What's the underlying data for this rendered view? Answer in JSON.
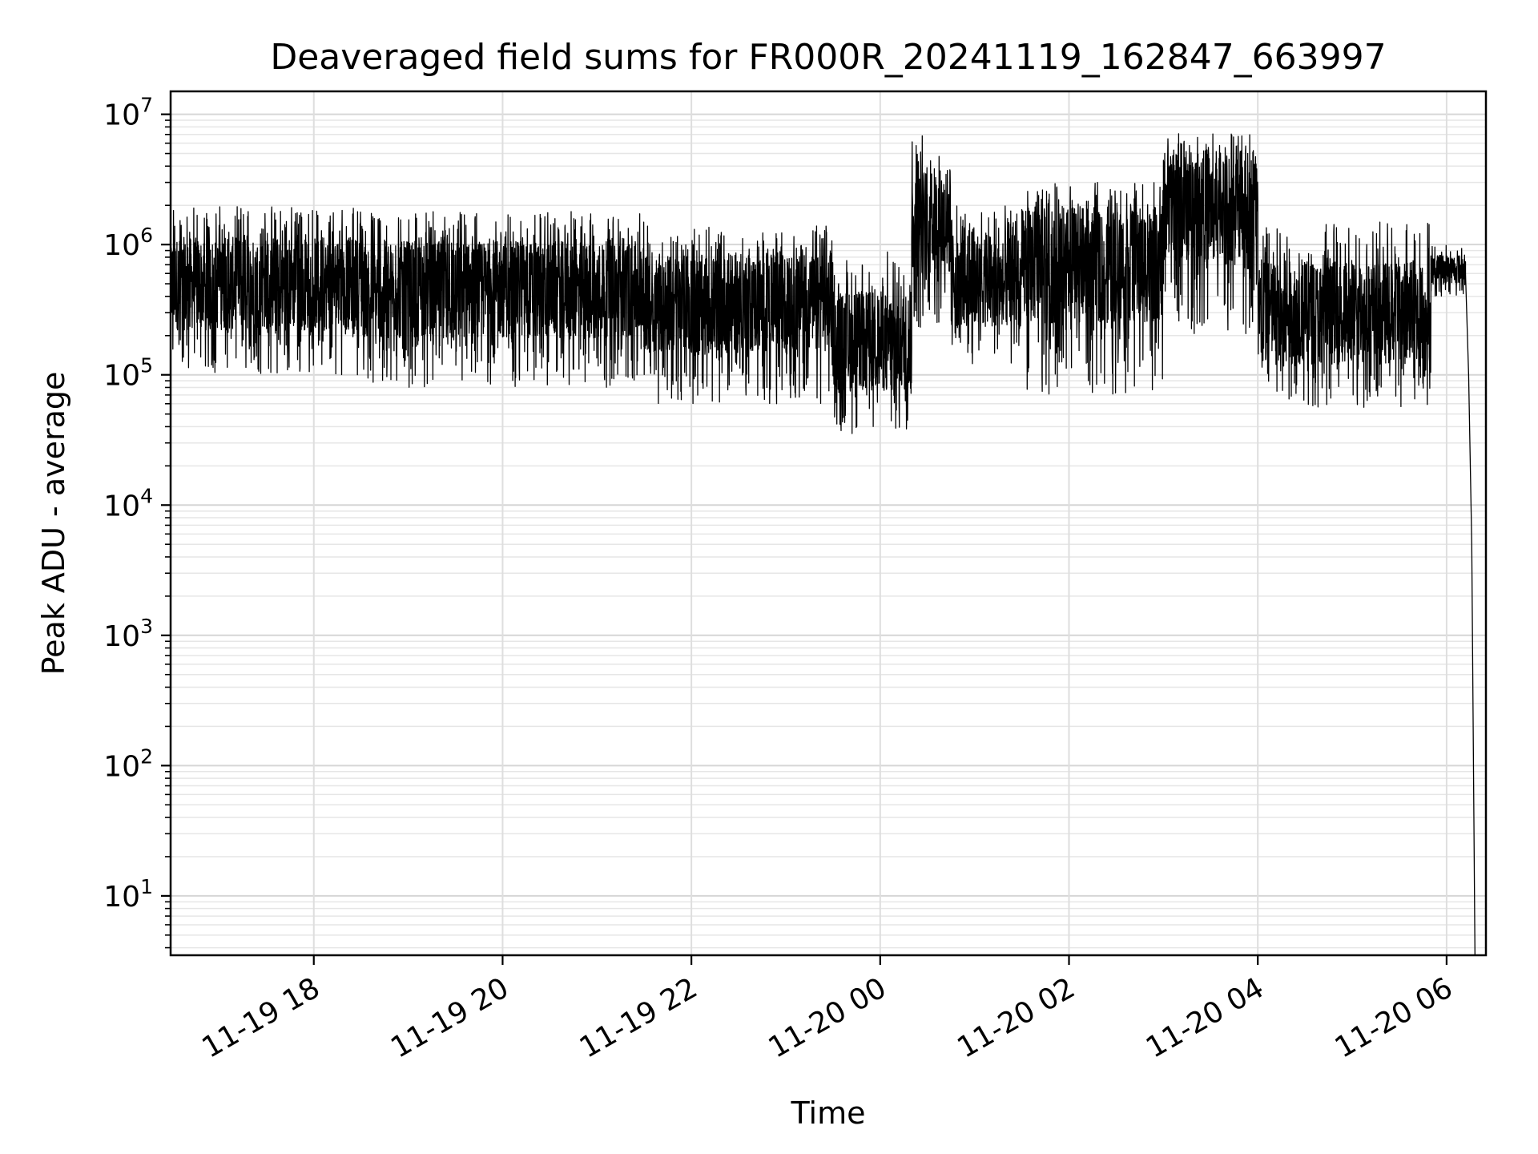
{
  "chart_data": {
    "type": "line",
    "title": "Deaveraged field sums for FR000R_20241119_162847_663997",
    "xlabel": "Time",
    "ylabel": "Peak ADU - average",
    "yscale": "log",
    "grid": true,
    "xlim": [
      "2024-11-19 16:29",
      "2024-11-20 06:25"
    ],
    "ylim": [
      3.5,
      15000000
    ],
    "x_ticks": [
      {
        "t": "2024-11-19 18:00",
        "label": "11-19 18"
      },
      {
        "t": "2024-11-19 20:00",
        "label": "11-19 20"
      },
      {
        "t": "2024-11-19 22:00",
        "label": "11-19 22"
      },
      {
        "t": "2024-11-20 00:00",
        "label": "11-20 00"
      },
      {
        "t": "2024-11-20 02:00",
        "label": "11-20 02"
      },
      {
        "t": "2024-11-20 04:00",
        "label": "11-20 04"
      },
      {
        "t": "2024-11-20 06:00",
        "label": "11-20 06"
      }
    ],
    "y_ticks": [
      {
        "value": 10,
        "base": "10",
        "exp": "1"
      },
      {
        "value": 100,
        "base": "10",
        "exp": "2"
      },
      {
        "value": 1000,
        "base": "10",
        "exp": "3"
      },
      {
        "value": 10000,
        "base": "10",
        "exp": "4"
      },
      {
        "value": 100000,
        "base": "10",
        "exp": "5"
      },
      {
        "value": 1000000,
        "base": "10",
        "exp": "6"
      },
      {
        "value": 10000000,
        "base": "10",
        "exp": "7"
      }
    ],
    "series": [
      {
        "color": "#000000",
        "segments": [
          {
            "start": "2024-11-19 16:29",
            "end": "2024-11-19 18:30",
            "low": 100000,
            "high": 2000000,
            "median": 500000
          },
          {
            "start": "2024-11-19 18:30",
            "end": "2024-11-19 21:30",
            "low": 80000,
            "high": 1800000,
            "median": 450000
          },
          {
            "start": "2024-11-19 21:30",
            "end": "2024-11-19 23:30",
            "low": 60000,
            "high": 1400000,
            "median": 350000
          },
          {
            "start": "2024-11-19 23:30",
            "end": "2024-11-20 00:20",
            "low": 35000,
            "high": 900000,
            "median": 180000
          },
          {
            "start": "2024-11-20 00:20",
            "end": "2024-11-20 00:45",
            "low": 200000,
            "high": 7000000,
            "median": 1500000
          },
          {
            "start": "2024-11-20 00:45",
            "end": "2024-11-20 01:30",
            "low": 120000,
            "high": 2000000,
            "median": 500000
          },
          {
            "start": "2024-11-20 01:30",
            "end": "2024-11-20 03:00",
            "low": 70000,
            "high": 3000000,
            "median": 700000
          },
          {
            "start": "2024-11-20 03:00",
            "end": "2024-11-20 04:00",
            "low": 200000,
            "high": 7500000,
            "median": 2000000
          },
          {
            "start": "2024-11-20 04:00",
            "end": "2024-11-20 05:50",
            "low": 55000,
            "high": 1500000,
            "median": 300000
          },
          {
            "start": "2024-11-20 05:50",
            "end": "2024-11-20 06:12",
            "low": 400000,
            "high": 1000000,
            "median": 650000
          }
        ],
        "tail": [
          {
            "t": "2024-11-20 06:12",
            "y": 600000
          },
          {
            "t": "2024-11-20 06:14",
            "y": 100000
          },
          {
            "t": "2024-11-20 06:16",
            "y": 5000
          },
          {
            "t": "2024-11-20 06:18",
            "y": 3.5
          }
        ]
      }
    ]
  }
}
